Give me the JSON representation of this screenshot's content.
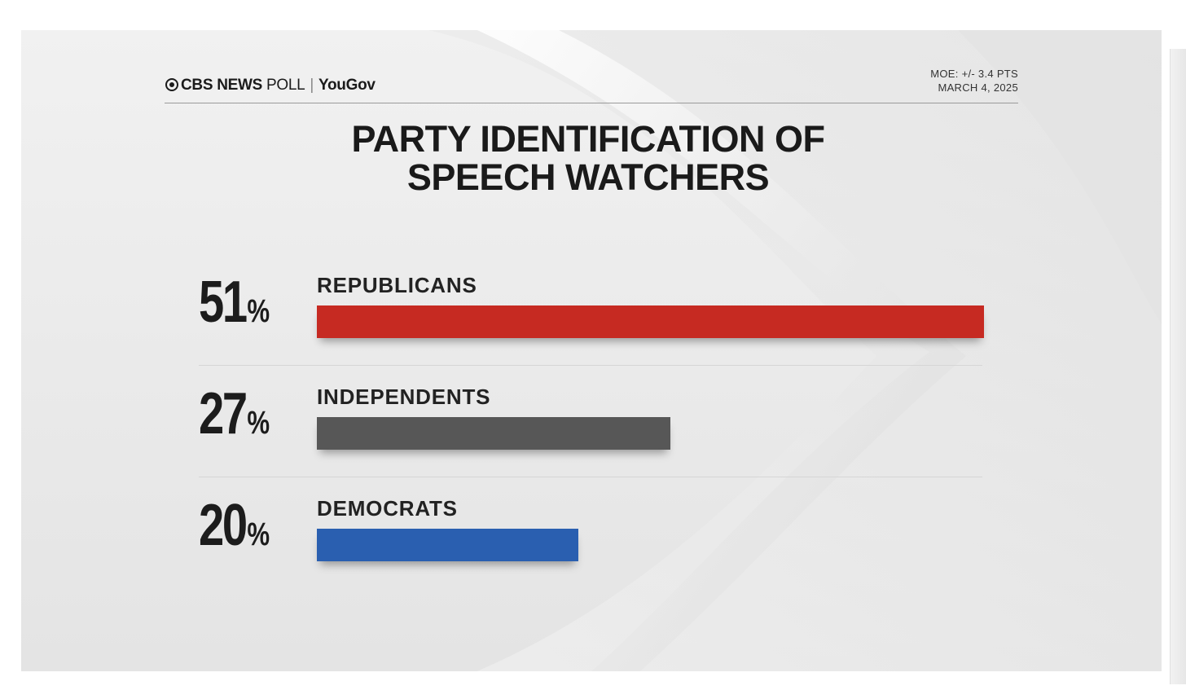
{
  "header": {
    "brand_primary": "CBS NEWS",
    "brand_secondary": "POLL",
    "brand_partner": "YouGov",
    "moe": "MOE: +/- 3.4 PTS",
    "date": "MARCH 4, 2025"
  },
  "chart_data": {
    "type": "bar",
    "orientation": "horizontal",
    "title_line1": "PARTY IDENTIFICATION OF",
    "title_line2": "SPEECH WATCHERS",
    "categories": [
      "REPUBLICANS",
      "INDEPENDENTS",
      "DEMOCRATS"
    ],
    "values": [
      51,
      27,
      20
    ],
    "value_labels": [
      "51",
      "27",
      "20"
    ],
    "unit": "%",
    "colors": [
      "#c62a22",
      "#575757",
      "#2a5fb0"
    ],
    "xlim": [
      0,
      51
    ],
    "grid": false,
    "legend": "none"
  }
}
